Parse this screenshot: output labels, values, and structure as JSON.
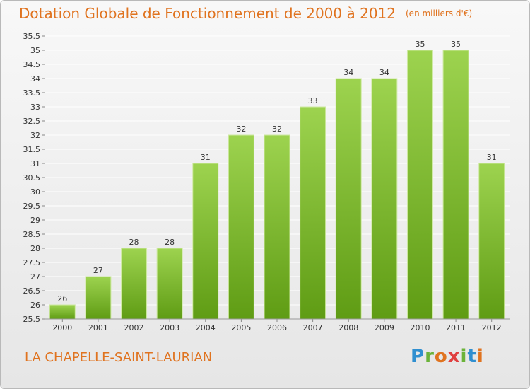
{
  "header": {
    "title": "Dotation Globale de Fonctionnement de 2000 à 2012",
    "subtitle": "(en milliers d'€)"
  },
  "footer": {
    "place": "LA CHAPELLE-SAINT-LAURIAN",
    "logo_text": "Proxiti",
    "logo_colors": [
      "#2f8fd0",
      "#6bb33a",
      "#e0731f",
      "#e04040",
      "#6bb33a",
      "#2f8fd0",
      "#e0731f"
    ]
  },
  "colors": {
    "title": "#e0731f",
    "bar_top": "#9dd34f",
    "bar_bottom": "#5f9c14",
    "bar_edge": "#cfe9a3"
  },
  "chart_data": {
    "type": "bar",
    "title": "Dotation Globale de Fonctionnement de 2000 à 2012",
    "subtitle": "(en milliers d'€)",
    "categories": [
      "2000",
      "2001",
      "2002",
      "2003",
      "2004",
      "2005",
      "2006",
      "2007",
      "2008",
      "2009",
      "2010",
      "2011",
      "2012"
    ],
    "values": [
      26,
      27,
      28,
      28,
      31,
      32,
      32,
      33,
      34,
      34,
      35,
      35,
      31
    ],
    "ylim": [
      25.5,
      35.5
    ],
    "ytick_step": 0.5,
    "yticks": [
      "25.5",
      "26",
      "26.5",
      "27",
      "27.5",
      "28",
      "28.5",
      "29",
      "29.5",
      "30",
      "30.5",
      "31",
      "31.5",
      "32",
      "32.5",
      "33",
      "33.5",
      "34",
      "34.5",
      "35",
      "35.5"
    ],
    "grid": true,
    "xlabel": "",
    "ylabel": ""
  }
}
